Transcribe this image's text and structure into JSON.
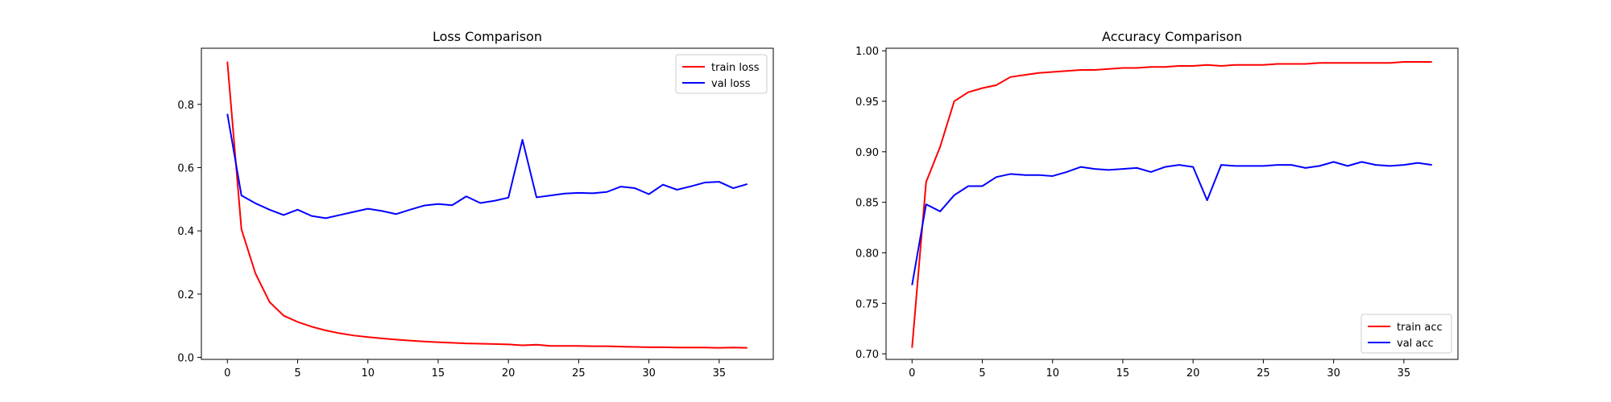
{
  "chart_data": [
    {
      "type": "line",
      "title": "Loss Comparison",
      "xlabel": "",
      "ylabel": "",
      "xlim": [
        -1.85,
        38.85
      ],
      "ylim": [
        -0.0065,
        0.9775
      ],
      "xticks": [
        0,
        5,
        10,
        15,
        20,
        25,
        30,
        35
      ],
      "yticks": [
        0.0,
        0.2,
        0.4,
        0.6,
        0.8
      ],
      "ytick_labels": [
        "0.0",
        "0.2",
        "0.4",
        "0.6",
        "0.8"
      ],
      "legend": {
        "position": "top-right"
      },
      "grid": false,
      "x": [
        0,
        1,
        2,
        3,
        4,
        5,
        6,
        7,
        8,
        9,
        10,
        11,
        12,
        13,
        14,
        15,
        16,
        17,
        18,
        19,
        20,
        21,
        22,
        23,
        24,
        25,
        26,
        27,
        28,
        29,
        30,
        31,
        32,
        33,
        34,
        35,
        36,
        37
      ],
      "series": [
        {
          "name": "train loss",
          "color": "#ff0000",
          "values": [
            0.935,
            0.405,
            0.265,
            0.175,
            0.132,
            0.112,
            0.097,
            0.085,
            0.076,
            0.069,
            0.064,
            0.06,
            0.056,
            0.053,
            0.05,
            0.048,
            0.046,
            0.044,
            0.043,
            0.042,
            0.041,
            0.038,
            0.04,
            0.036,
            0.036,
            0.036,
            0.035,
            0.035,
            0.034,
            0.033,
            0.032,
            0.032,
            0.031,
            0.031,
            0.031,
            0.03,
            0.031,
            0.03
          ]
        },
        {
          "name": "val loss",
          "color": "#0000ff",
          "values": [
            0.77,
            0.512,
            0.487,
            0.467,
            0.45,
            0.467,
            0.447,
            0.44,
            0.45,
            0.46,
            0.47,
            0.463,
            0.453,
            0.467,
            0.48,
            0.485,
            0.481,
            0.509,
            0.488,
            0.495,
            0.505,
            0.688,
            0.506,
            0.512,
            0.518,
            0.52,
            0.519,
            0.523,
            0.54,
            0.535,
            0.516,
            0.546,
            0.53,
            0.541,
            0.553,
            0.555,
            0.535,
            0.548
          ]
        }
      ]
    },
    {
      "type": "line",
      "title": "Accuracy Comparison",
      "xlabel": "",
      "ylabel": "",
      "xlim": [
        -1.85,
        38.85
      ],
      "ylim": [
        0.6945,
        1.0025
      ],
      "xticks": [
        0,
        5,
        10,
        15,
        20,
        25,
        30,
        35
      ],
      "yticks": [
        0.7,
        0.75,
        0.8,
        0.85,
        0.9,
        0.95,
        1.0
      ],
      "ytick_labels": [
        "0.70",
        "0.75",
        "0.80",
        "0.85",
        "0.90",
        "0.95",
        "1.00"
      ],
      "legend": {
        "position": "bottom-right"
      },
      "grid": false,
      "x": [
        0,
        1,
        2,
        3,
        4,
        5,
        6,
        7,
        8,
        9,
        10,
        11,
        12,
        13,
        14,
        15,
        16,
        17,
        18,
        19,
        20,
        21,
        22,
        23,
        24,
        25,
        26,
        27,
        28,
        29,
        30,
        31,
        32,
        33,
        34,
        35,
        36,
        37
      ],
      "series": [
        {
          "name": "train acc",
          "color": "#ff0000",
          "values": [
            0.706,
            0.87,
            0.905,
            0.95,
            0.959,
            0.963,
            0.966,
            0.974,
            0.976,
            0.978,
            0.979,
            0.98,
            0.981,
            0.981,
            0.982,
            0.983,
            0.983,
            0.984,
            0.984,
            0.985,
            0.985,
            0.986,
            0.985,
            0.986,
            0.986,
            0.986,
            0.987,
            0.987,
            0.987,
            0.988,
            0.988,
            0.988,
            0.988,
            0.988,
            0.988,
            0.989,
            0.989,
            0.989
          ]
        },
        {
          "name": "val acc",
          "color": "#0000ff",
          "values": [
            0.768,
            0.848,
            0.841,
            0.857,
            0.866,
            0.866,
            0.875,
            0.878,
            0.877,
            0.877,
            0.876,
            0.88,
            0.885,
            0.883,
            0.882,
            0.883,
            0.884,
            0.88,
            0.885,
            0.887,
            0.885,
            0.852,
            0.887,
            0.886,
            0.886,
            0.886,
            0.887,
            0.887,
            0.884,
            0.886,
            0.89,
            0.886,
            0.89,
            0.887,
            0.886,
            0.887,
            0.889,
            0.887
          ]
        }
      ]
    }
  ]
}
